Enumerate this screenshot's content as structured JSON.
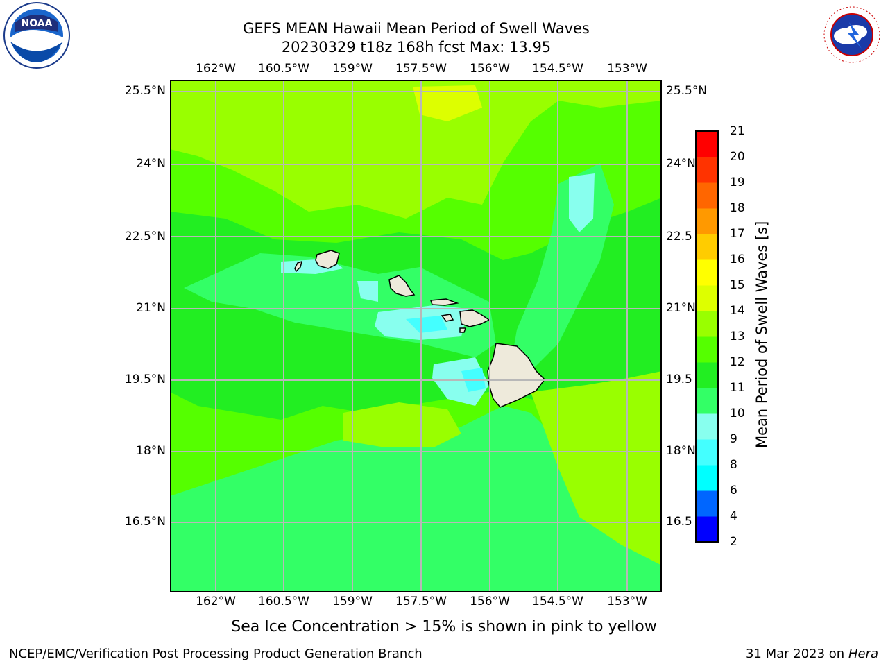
{
  "header": {
    "title_line1": "GEFS MEAN Hawaii Mean Period of Swell Waves",
    "title_line2": "20230329 t18z 168h fcst   Max: 13.95"
  },
  "map": {
    "lon_ticks": [
      "162°W",
      "160.5°W",
      "159°W",
      "157.5°W",
      "156°W",
      "154.5°W",
      "153°W"
    ],
    "lat_ticks_left": [
      "25.5°N",
      "24°N",
      "22.5°N",
      "21°N",
      "19.5°N",
      "18°N",
      "16.5°N"
    ],
    "lat_ticks_right": [
      "25.5°N",
      "24°N",
      "22.5",
      "21°N",
      "19.5",
      "18°N",
      "16.5"
    ],
    "land_color": "#eeeadb",
    "grid_color": "#b8b8b8"
  },
  "colorbar": {
    "title": "Mean Period of Swell Waves [s]",
    "levels": [
      "2",
      "4",
      "6",
      "8",
      "9",
      "10",
      "11",
      "12",
      "13",
      "14",
      "15",
      "16",
      "17",
      "18",
      "19",
      "20",
      "21"
    ],
    "colors": [
      "#0000ff",
      "#0066ff",
      "#00ffff",
      "#44ffff",
      "#88ffee",
      "#33ff66",
      "#22ee22",
      "#55ff00",
      "#99ff00",
      "#ddff00",
      "#ffff00",
      "#ffcc00",
      "#ff9900",
      "#ff6600",
      "#ff3300",
      "#ff0000"
    ]
  },
  "footer": {
    "ice_note": "Sea Ice Concentration > 15% is shown in pink to yellow",
    "credit": "NCEP/EMC/Verification Post Processing Product Generation Branch",
    "date": "31 Mar 2023 on",
    "machine": "Hera"
  },
  "logos": {
    "noaa": "NOAA",
    "nws": "NATIONAL WEATHER SERVICE"
  }
}
